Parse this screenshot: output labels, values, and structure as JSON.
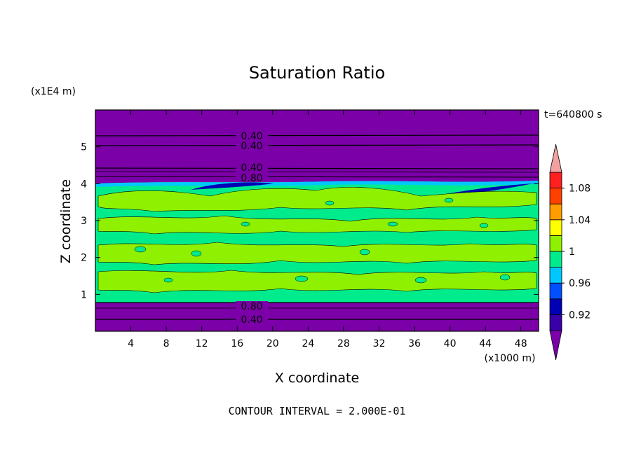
{
  "chart_data": {
    "type": "heatmap",
    "title": "Saturation Ratio",
    "xlabel": "X coordinate",
    "ylabel": "Z coordinate",
    "x_unit": "(x1000 m)",
    "y_unit": "(x1E4 m)",
    "time_label": "t=640800 s",
    "footer": "CONTOUR INTERVAL = 2.000E-01",
    "xlim": [
      0,
      50
    ],
    "ylim": [
      0,
      6
    ],
    "x_ticks": [
      "4",
      "8",
      "12",
      "16",
      "20",
      "24",
      "28",
      "32",
      "36",
      "40",
      "44",
      "48"
    ],
    "y_ticks": [
      "1",
      "2",
      "3",
      "4",
      "5"
    ],
    "x_tick_values": [
      4,
      8,
      12,
      16,
      20,
      24,
      28,
      32,
      36,
      40,
      44,
      48
    ],
    "y_tick_values": [
      1,
      2,
      3,
      4,
      5
    ],
    "colorbar": {
      "labels": [
        "1.08",
        "1.04",
        "1",
        "0.96",
        "0.92"
      ],
      "label_values": [
        1.08,
        1.04,
        1.0,
        0.96,
        0.92
      ],
      "range": [
        0.9,
        1.1
      ],
      "colors": [
        "#7b00a8",
        "#3a00a8",
        "#0000b5",
        "#0050ff",
        "#00c8ff",
        "#00ec8c",
        "#8ff000",
        "#ffff00",
        "#ff9c00",
        "#ff4000",
        "#ff2020",
        "#f4a0a0"
      ]
    },
    "contour_lines": [
      {
        "label": "0.40",
        "z": 5.3
      },
      {
        "label": "0.40",
        "z": 5.0
      },
      {
        "label": "0.40",
        "z": 4.35
      },
      {
        "label": "0.80",
        "z": 4.1
      },
      {
        "label": "0.80",
        "z": 0.75
      },
      {
        "label": "0.40",
        "z": 0.35
      }
    ],
    "regions": [
      {
        "z_min": 0.0,
        "z_max": 0.8,
        "value": "below 0.90"
      },
      {
        "z_min": 0.8,
        "z_max": 3.9,
        "value": "0.98-1.00"
      },
      {
        "z_min": 3.9,
        "z_max": 4.1,
        "value": "0.94-0.98"
      },
      {
        "z_min": 4.1,
        "z_max": 6.0,
        "value": "below 0.90"
      }
    ]
  }
}
